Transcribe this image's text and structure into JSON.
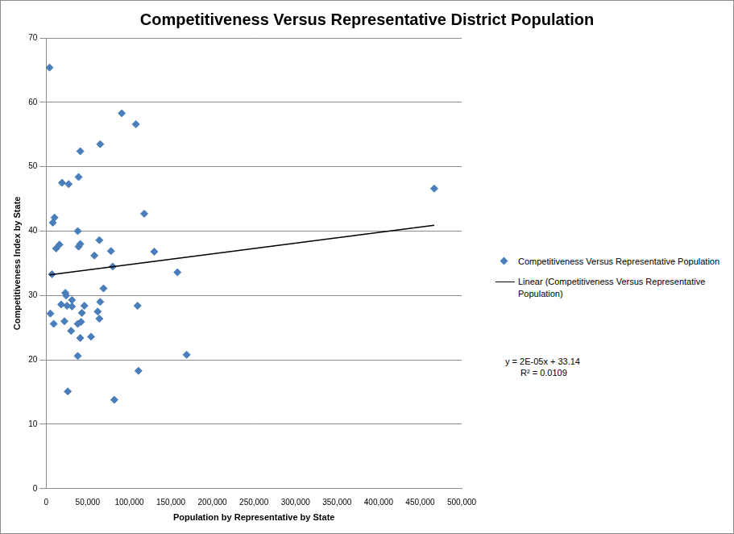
{
  "chart_data": {
    "type": "scatter",
    "title": "Competitiveness Versus Representative District Population",
    "x_label": "Population by Representative by State",
    "y_label": "Competitiveness Index by State",
    "xlim": [
      0,
      500000
    ],
    "xticks": [
      0,
      {
        "value": 50000,
        "label": "50,000"
      },
      {
        "value": 100000,
        "label": "100,000"
      },
      {
        "value": 150000,
        "label": "150,000"
      },
      {
        "value": 200000,
        "label": "200,000"
      },
      {
        "value": 250000,
        "label": "250,000"
      },
      {
        "value": 300000,
        "label": "300,000"
      },
      {
        "value": 350000,
        "label": "350,000"
      },
      {
        "value": 400000,
        "label": "400,000"
      },
      {
        "value": 450000,
        "label": "450,000"
      },
      {
        "value": 500000,
        "label": "500,000"
      }
    ],
    "ylim": [
      0,
      70
    ],
    "yticks": [
      0,
      10,
      20,
      30,
      40,
      50,
      60,
      70
    ],
    "grid": "y",
    "legend": "right",
    "annotations": [
      "y = 2E-05x + 33.14",
      "R² = 0.0109"
    ],
    "series": [
      {
        "name": "Competitiveness Versus Representative Population",
        "type": "scatter",
        "color": "#4a7ebb",
        "marker": "diamond",
        "x": [
          4000,
          91000,
          108000,
          65000,
          41000,
          39000,
          19000,
          27000,
          467000,
          118000,
          10000,
          8000,
          38000,
          16000,
          12000,
          41000,
          39000,
          64000,
          78000,
          58000,
          130000,
          80000,
          158000,
          7000,
          69000,
          23000,
          24000,
          31000,
          65000,
          18000,
          25000,
          31000,
          46000,
          110000,
          62000,
          43000,
          5000,
          64000,
          22000,
          42000,
          9000,
          38000,
          30000,
          54000,
          41000,
          169000,
          38000,
          111000,
          26000,
          82000
        ],
        "values": [
          65.4,
          58.3,
          56.6,
          53.5,
          52.4,
          48.4,
          47.5,
          47.3,
          46.6,
          42.7,
          42.1,
          41.3,
          40.0,
          37.9,
          37.3,
          38.0,
          37.6,
          38.6,
          36.9,
          36.2,
          36.8,
          34.5,
          33.6,
          33.3,
          31.1,
          30.4,
          30.0,
          29.3,
          29.0,
          28.6,
          28.4,
          28.3,
          28.4,
          28.4,
          27.5,
          27.3,
          27.2,
          26.4,
          26.0,
          25.9,
          25.6,
          25.6,
          24.5,
          23.6,
          23.4,
          20.8,
          20.6,
          18.3,
          15.1,
          13.8
        ]
      },
      {
        "name": "Linear (Competitiveness Versus Representative Population)",
        "type": "line",
        "color": "#000000",
        "line_style": "solid",
        "x": [
          4000,
          467000
        ],
        "values": [
          33.2,
          40.9
        ]
      }
    ]
  }
}
